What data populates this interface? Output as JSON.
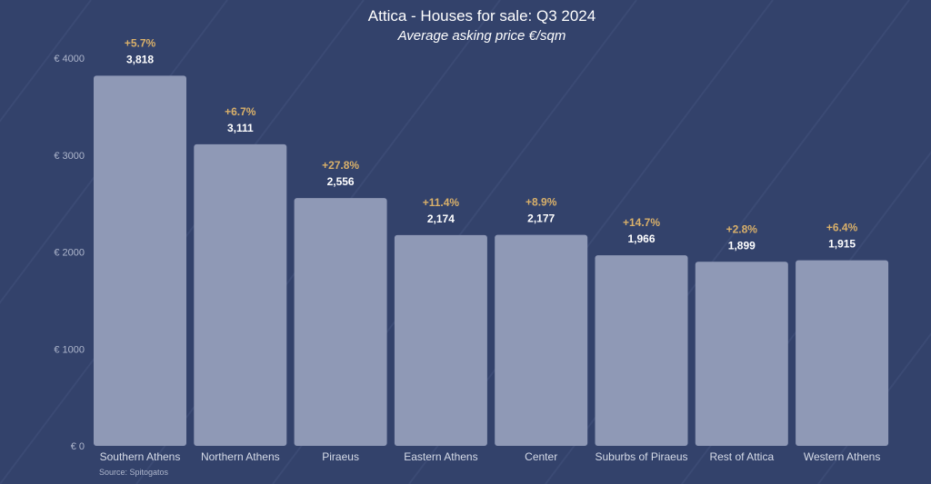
{
  "chart_data": {
    "type": "bar",
    "title": "Attica - Houses for sale: Q3 2024",
    "subtitle": "Average asking price €/sqm",
    "categories": [
      "Southern Athens",
      "Northern Athens",
      "Piraeus",
      "Eastern Athens",
      "Center",
      "Suburbs of Piraeus",
      "Rest of Attica",
      "Western Athens"
    ],
    "values": [
      3818,
      3111,
      2556,
      2174,
      2177,
      1966,
      1899,
      1915
    ],
    "value_labels": [
      "3,818",
      "3,111",
      "2,556",
      "2,174",
      "2,177",
      "1,966",
      "1,899",
      "1,915"
    ],
    "change_labels": [
      "+5.7%",
      "+6.7%",
      "+27.8%",
      "+11.4%",
      "+8.9%",
      "+14.7%",
      "+2.8%",
      "+6.4%"
    ],
    "yticks": [
      "€ 0",
      "€ 1000",
      "€ 2000",
      "€ 3000",
      "€ 4000"
    ],
    "ytick_values": [
      0,
      1000,
      2000,
      3000,
      4000
    ],
    "ylim": [
      0,
      4000
    ],
    "grid": false,
    "source": "Source: Spitogatos",
    "colors": {
      "background": "#33426b",
      "bar": "#8f99b6",
      "change": "#d9b06a",
      "value": "#ffffff"
    }
  }
}
